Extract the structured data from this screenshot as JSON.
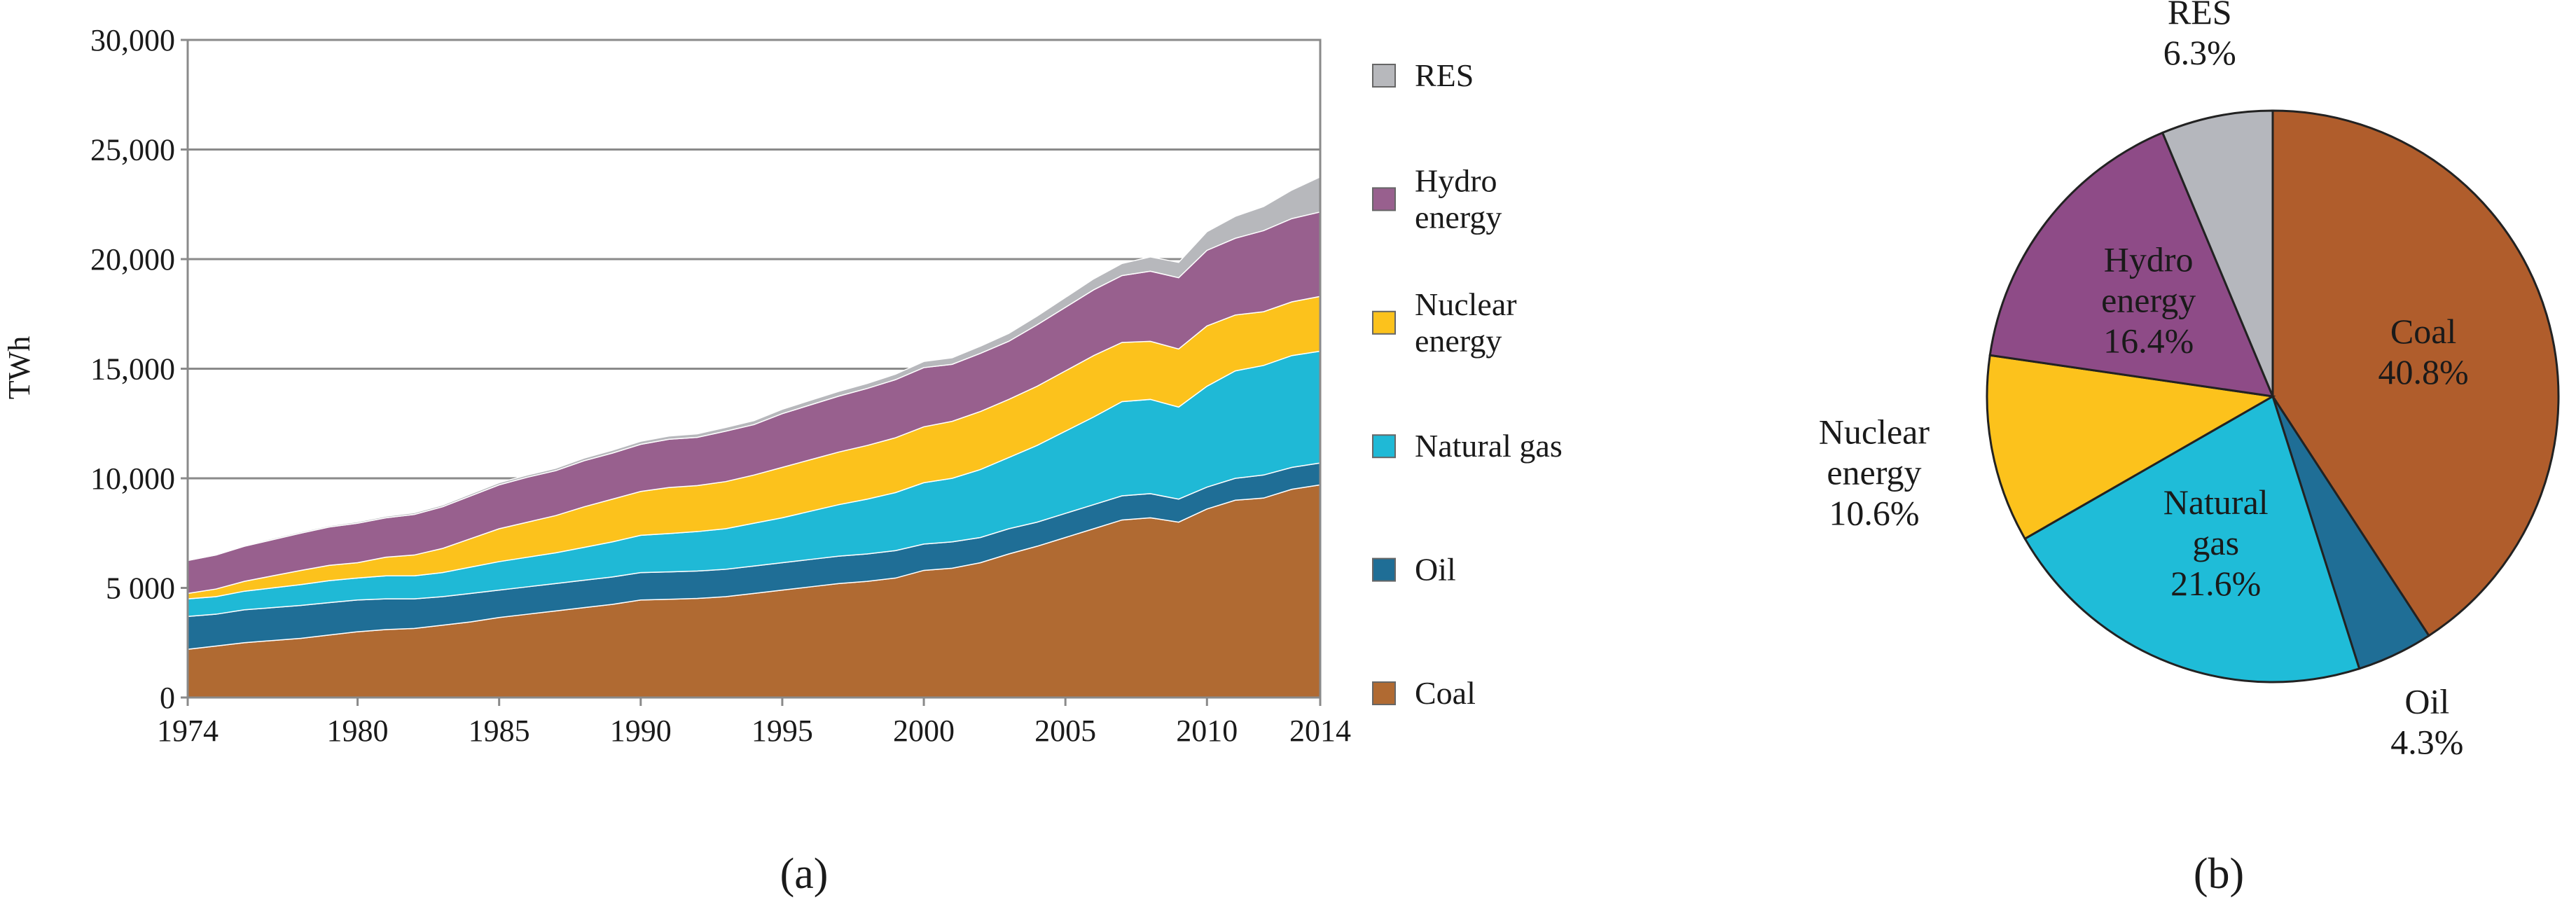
{
  "chart_data": [
    {
      "type": "area",
      "stacked": true,
      "ylabel": "TWh",
      "xlabel": "",
      "ylim": [
        0,
        30000
      ],
      "xlim": [
        1974,
        2014
      ],
      "y_ticks": [
        "0",
        "5 000",
        "10,000",
        "15,000",
        "20,000",
        "25,000",
        "30,000"
      ],
      "y_tick_values": [
        0,
        5000,
        10000,
        15000,
        20000,
        25000,
        30000
      ],
      "x_ticks": [
        "1974",
        "1980",
        "1985",
        "1990",
        "1995",
        "2000",
        "2005",
        "2010",
        "2014"
      ],
      "x_tick_values": [
        1974,
        1980,
        1985,
        1990,
        1995,
        2000,
        2005,
        2010,
        2014
      ],
      "grid": true,
      "legend_position": "right",
      "x": [
        1974,
        1975,
        1976,
        1977,
        1978,
        1979,
        1980,
        1981,
        1982,
        1983,
        1984,
        1985,
        1986,
        1987,
        1988,
        1989,
        1990,
        1991,
        1992,
        1993,
        1994,
        1995,
        1996,
        1997,
        1998,
        1999,
        2000,
        2001,
        2002,
        2003,
        2004,
        2005,
        2006,
        2007,
        2008,
        2009,
        2010,
        2011,
        2012,
        2013,
        2014
      ],
      "series": [
        {
          "name": "Coal",
          "color": "#b06a32",
          "values": [
            2200,
            2350,
            2500,
            2600,
            2700,
            2850,
            3000,
            3100,
            3150,
            3300,
            3450,
            3650,
            3800,
            3950,
            4100,
            4250,
            4450,
            4480,
            4520,
            4600,
            4750,
            4900,
            5050,
            5200,
            5300,
            5450,
            5800,
            5900,
            6150,
            6550,
            6900,
            7300,
            7700,
            8100,
            8200,
            8000,
            8600,
            9000,
            9100,
            9500,
            9700
          ]
        },
        {
          "name": "Oil",
          "color": "#1f6e96",
          "values": [
            1500,
            1450,
            1500,
            1500,
            1500,
            1480,
            1450,
            1400,
            1350,
            1300,
            1300,
            1250,
            1250,
            1250,
            1250,
            1250,
            1250,
            1250,
            1250,
            1250,
            1250,
            1250,
            1250,
            1250,
            1250,
            1250,
            1200,
            1200,
            1150,
            1150,
            1100,
            1100,
            1100,
            1100,
            1100,
            1050,
            1000,
            1000,
            1050,
            1000,
            1000
          ]
        },
        {
          "name": "Natural gas",
          "color": "#1fb9d6",
          "values": [
            800,
            800,
            850,
            900,
            950,
            1000,
            1000,
            1050,
            1050,
            1100,
            1200,
            1300,
            1350,
            1400,
            1500,
            1600,
            1700,
            1750,
            1800,
            1850,
            1950,
            2050,
            2200,
            2350,
            2500,
            2650,
            2800,
            2900,
            3100,
            3250,
            3500,
            3750,
            4000,
            4300,
            4300,
            4200,
            4600,
            4900,
            5000,
            5100,
            5100
          ]
        },
        {
          "name": "Nuclear energy",
          "color": "#fcc21c",
          "values": [
            250,
            350,
            450,
            550,
            650,
            700,
            700,
            850,
            950,
            1100,
            1300,
            1500,
            1600,
            1700,
            1850,
            1950,
            2000,
            2100,
            2100,
            2150,
            2200,
            2300,
            2350,
            2400,
            2450,
            2500,
            2550,
            2600,
            2650,
            2650,
            2700,
            2750,
            2800,
            2700,
            2650,
            2650,
            2750,
            2550,
            2450,
            2450,
            2500
          ]
        },
        {
          "name": "Hydro energy",
          "color": "#98608e",
          "values": [
            1500,
            1550,
            1600,
            1650,
            1700,
            1750,
            1800,
            1800,
            1850,
            1900,
            1950,
            2000,
            2050,
            2050,
            2100,
            2100,
            2150,
            2200,
            2200,
            2300,
            2300,
            2450,
            2500,
            2550,
            2600,
            2650,
            2700,
            2600,
            2650,
            2650,
            2800,
            2900,
            3000,
            3050,
            3200,
            3250,
            3450,
            3500,
            3700,
            3800,
            3850
          ]
        },
        {
          "name": "RES",
          "color": "#b7b8bc",
          "values": [
            50,
            50,
            50,
            60,
            60,
            60,
            70,
            70,
            80,
            80,
            90,
            100,
            100,
            110,
            120,
            130,
            140,
            150,
            160,
            170,
            180,
            200,
            210,
            220,
            230,
            250,
            280,
            300,
            330,
            360,
            400,
            450,
            500,
            550,
            650,
            700,
            850,
            1000,
            1100,
            1300,
            1600
          ]
        }
      ],
      "panel_label": "(a)"
    },
    {
      "type": "pie",
      "start_angle_deg": 0,
      "direction": "clockwise",
      "slices": [
        {
          "name": "Coal",
          "label_lines": [
            "Coal"
          ],
          "percent_text": "40.8%",
          "value": 40.8,
          "color": "#b05d2c"
        },
        {
          "name": "Oil",
          "label_lines": [
            "Oil"
          ],
          "percent_text": "4.3%",
          "value": 4.3,
          "color": "#1f6e96"
        },
        {
          "name": "Natural gas",
          "label_lines": [
            "Natural",
            "gas"
          ],
          "percent_text": "21.6%",
          "value": 21.6,
          "color": "#1fbcd8"
        },
        {
          "name": "Nuclear energy",
          "label_lines": [
            "Nuclear",
            "energy"
          ],
          "percent_text": "10.6%",
          "value": 10.6,
          "color": "#fcc21c"
        },
        {
          "name": "Hydro energy",
          "label_lines": [
            "Hydro",
            "energy"
          ],
          "percent_text": "16.4%",
          "value": 16.4,
          "color": "#8e4b87"
        },
        {
          "name": "RES",
          "label_lines": [
            "RES"
          ],
          "percent_text": "6.3%",
          "value": 6.3,
          "color": "#b5b7bd"
        }
      ],
      "panel_label": "(b)"
    }
  ]
}
